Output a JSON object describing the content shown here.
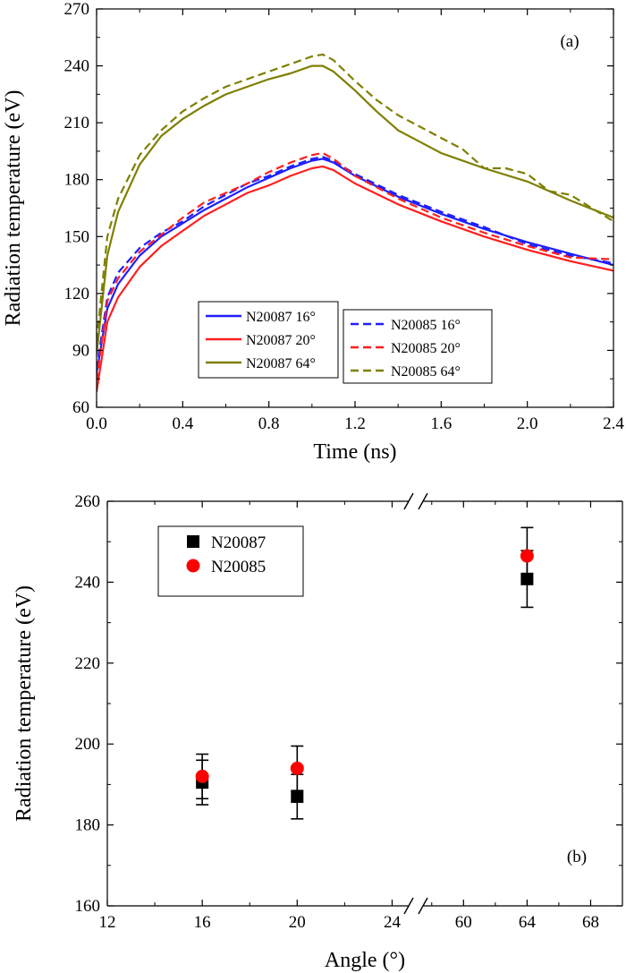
{
  "chart_data": [
    {
      "type": "line",
      "panel_label": "(a)",
      "xlabel": "Time (ns)",
      "ylabel": "Radiation temperature (eV)",
      "xlim": [
        0.0,
        2.4
      ],
      "ylim": [
        60,
        270
      ],
      "xticks": [
        0.0,
        0.4,
        0.8,
        1.2,
        1.6,
        2.0,
        2.4
      ],
      "xtick_labels": [
        "0.0",
        "0.4",
        "0.8",
        "1.2",
        "1.6",
        "2.0",
        "2.4"
      ],
      "yticks": [
        60,
        90,
        120,
        150,
        180,
        210,
        240,
        270
      ],
      "ytick_labels": [
        "60",
        "90",
        "120",
        "150",
        "180",
        "210",
        "240",
        "270"
      ],
      "grid": false,
      "legend_placement": "lower-center",
      "series": [
        {
          "name": "N20087 16°",
          "color": "#1f1fff",
          "dash": "solid",
          "x": [
            0.0,
            0.05,
            0.1,
            0.2,
            0.3,
            0.4,
            0.5,
            0.6,
            0.7,
            0.8,
            0.9,
            1.0,
            1.05,
            1.1,
            1.2,
            1.4,
            1.6,
            1.8,
            2.0,
            2.2,
            2.4
          ],
          "y": [
            78,
            112,
            125,
            140,
            150,
            157,
            164,
            170,
            176,
            181,
            186,
            190,
            191,
            189,
            182,
            171,
            162,
            154,
            147,
            141,
            135
          ]
        },
        {
          "name": "N20087 20°",
          "color": "#ff1f1f",
          "dash": "solid",
          "x": [
            0.0,
            0.05,
            0.1,
            0.2,
            0.3,
            0.4,
            0.5,
            0.6,
            0.7,
            0.8,
            0.9,
            1.0,
            1.05,
            1.1,
            1.2,
            1.4,
            1.6,
            1.8,
            2.0,
            2.2,
            2.4
          ],
          "y": [
            68,
            105,
            118,
            134,
            145,
            153,
            161,
            167,
            173,
            177,
            182,
            186,
            187,
            185,
            178,
            167,
            158,
            150,
            143,
            137,
            132
          ]
        },
        {
          "name": "N20087 64°",
          "color": "#7f7f00",
          "dash": "solid",
          "x": [
            0.0,
            0.05,
            0.1,
            0.2,
            0.3,
            0.4,
            0.5,
            0.6,
            0.7,
            0.8,
            0.9,
            1.0,
            1.05,
            1.1,
            1.2,
            1.3,
            1.4,
            1.5,
            1.6,
            1.8,
            2.0,
            2.2,
            2.4
          ],
          "y": [
            88,
            140,
            163,
            188,
            203,
            212,
            219,
            225,
            229,
            233,
            236,
            240,
            240,
            237,
            227,
            216,
            206,
            200,
            194,
            186,
            179,
            169,
            160
          ]
        },
        {
          "name": "N20085 16°",
          "color": "#1f1fff",
          "dash": "dashed",
          "x": [
            0.0,
            0.05,
            0.1,
            0.2,
            0.3,
            0.4,
            0.5,
            0.6,
            0.7,
            0.8,
            0.9,
            1.0,
            1.05,
            1.1,
            1.2,
            1.4,
            1.6,
            1.8,
            2.0,
            2.2,
            2.4
          ],
          "y": [
            80,
            118,
            131,
            144,
            152,
            158,
            166,
            172,
            178,
            182,
            187,
            191,
            192,
            190,
            183,
            172,
            163,
            155,
            146,
            140,
            136
          ]
        },
        {
          "name": "N20085 20°",
          "color": "#ff1f1f",
          "dash": "dashed",
          "x": [
            0.0,
            0.05,
            0.1,
            0.2,
            0.3,
            0.4,
            0.5,
            0.6,
            0.7,
            0.8,
            0.9,
            1.0,
            1.05,
            1.1,
            1.2,
            1.4,
            1.6,
            1.8,
            2.0,
            2.2,
            2.4
          ],
          "y": [
            74,
            116,
            128,
            142,
            151,
            160,
            168,
            173,
            178,
            184,
            189,
            193,
            194,
            191,
            182,
            170,
            160,
            152,
            145,
            139,
            138
          ]
        },
        {
          "name": "N20085 64°",
          "color": "#7f7f00",
          "dash": "dashed",
          "x": [
            0.0,
            0.05,
            0.1,
            0.2,
            0.3,
            0.4,
            0.5,
            0.6,
            0.7,
            0.8,
            0.9,
            1.0,
            1.05,
            1.1,
            1.2,
            1.3,
            1.4,
            1.5,
            1.6,
            1.7,
            1.8,
            1.9,
            2.0,
            2.1,
            2.2,
            2.4
          ],
          "y": [
            95,
            150,
            170,
            193,
            206,
            216,
            223,
            229,
            233,
            237,
            241,
            245,
            246,
            243,
            232,
            222,
            214,
            208,
            202,
            196,
            186,
            186,
            183,
            174,
            172,
            158
          ]
        }
      ]
    },
    {
      "type": "scatter",
      "panel_label": "(b)",
      "xlabel": "Angle (°)",
      "ylabel": "Radiation temperature (eV)",
      "broken_x_axis": true,
      "x_segments": [
        {
          "xlim": [
            12,
            25
          ],
          "xticks": [
            12,
            16,
            20,
            24
          ],
          "xtick_labels": [
            "12",
            "16",
            "20",
            "24"
          ]
        },
        {
          "xlim": [
            57,
            70
          ],
          "xticks": [
            60,
            64,
            68
          ],
          "xtick_labels": [
            "60",
            "64",
            "68"
          ]
        }
      ],
      "ylim": [
        160,
        260
      ],
      "yticks": [
        160,
        180,
        200,
        220,
        240,
        260
      ],
      "ytick_labels": [
        "160",
        "180",
        "200",
        "220",
        "240",
        "260"
      ],
      "grid": false,
      "legend_placement": "top-left",
      "series": [
        {
          "name": "N20087",
          "marker": "square",
          "color": "#000000",
          "x": [
            16,
            20,
            64
          ],
          "y": [
            190.5,
            187,
            240.8
          ],
          "err": [
            5.5,
            5.5,
            7
          ]
        },
        {
          "name": "N20085",
          "marker": "circle",
          "color": "#ff0000",
          "x": [
            16,
            20,
            64
          ],
          "y": [
            192,
            194,
            246.5
          ],
          "err": [
            5.5,
            5.5,
            7
          ]
        }
      ]
    }
  ]
}
